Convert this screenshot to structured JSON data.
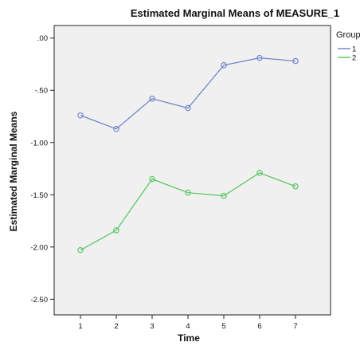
{
  "chart_data": {
    "type": "line",
    "title": "Estimated Marginal Means of MEASURE_1",
    "xlabel": "Time",
    "ylabel": "Estimated Marginal Means",
    "x": [
      "1",
      "2",
      "3",
      "4",
      "5",
      "6",
      "7"
    ],
    "ylim": [
      -2.65,
      0.12
    ],
    "yticks": [
      0.0,
      -0.5,
      -1.0,
      -1.5,
      -2.0,
      -2.5
    ],
    "ytick_labels": [
      ".00",
      "-.50",
      "-1.00",
      "-1.50",
      "-2.00",
      "-2.50"
    ],
    "grid": false,
    "plot_background": "#f0f0f0",
    "legend": {
      "title": "Group",
      "position": "right"
    },
    "series": [
      {
        "name": "1",
        "color": "#6b7fc8",
        "marker": "circle",
        "values": [
          -0.74,
          -0.87,
          -0.58,
          -0.67,
          -0.26,
          -0.19,
          -0.22
        ]
      },
      {
        "name": "2",
        "color": "#52c45a",
        "marker": "circle",
        "values": [
          -2.03,
          -1.84,
          -1.35,
          -1.48,
          -1.51,
          -1.29,
          -1.42
        ]
      }
    ]
  }
}
